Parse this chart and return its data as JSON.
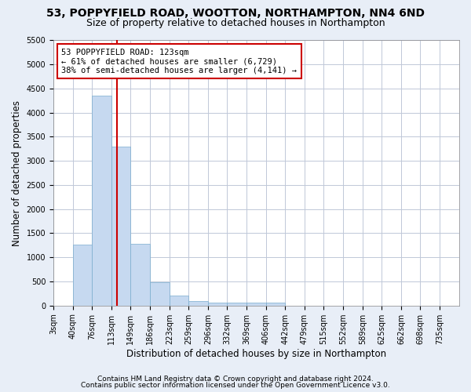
{
  "title1": "53, POPPYFIELD ROAD, WOOTTON, NORTHAMPTON, NN4 6ND",
  "title2": "Size of property relative to detached houses in Northampton",
  "xlabel": "Distribution of detached houses by size in Northampton",
  "ylabel": "Number of detached properties",
  "footnote1": "Contains HM Land Registry data © Crown copyright and database right 2024.",
  "footnote2": "Contains public sector information licensed under the Open Government Licence v3.0.",
  "bin_edges": [
    3,
    40,
    76,
    113,
    149,
    186,
    223,
    259,
    296,
    332,
    369,
    406,
    442,
    479,
    515,
    552,
    589,
    625,
    662,
    698,
    735
  ],
  "bar_heights": [
    0,
    1270,
    4350,
    3300,
    1280,
    490,
    215,
    90,
    65,
    55,
    55,
    55,
    0,
    0,
    0,
    0,
    0,
    0,
    0,
    0
  ],
  "bar_color": "#c6d9f0",
  "bar_edgecolor": "#7aadce",
  "vline_x": 123,
  "vline_color": "#cc0000",
  "annotation_line1": "53 POPPYFIELD ROAD: 123sqm",
  "annotation_line2": "← 61% of detached houses are smaller (6,729)",
  "annotation_line3": "38% of semi-detached houses are larger (4,141) →",
  "annotation_box_color": "#cc0000",
  "ylim_max": 5500,
  "yticks": [
    0,
    500,
    1000,
    1500,
    2000,
    2500,
    3000,
    3500,
    4000,
    4500,
    5000,
    5500
  ],
  "bg_color": "#e8eef7",
  "axes_bg_color": "#ffffff",
  "title1_fontsize": 10,
  "title2_fontsize": 9,
  "xlabel_fontsize": 8.5,
  "ylabel_fontsize": 8.5,
  "tick_fontsize": 7,
  "footnote_fontsize": 6.5,
  "annotation_fontsize": 7.5
}
